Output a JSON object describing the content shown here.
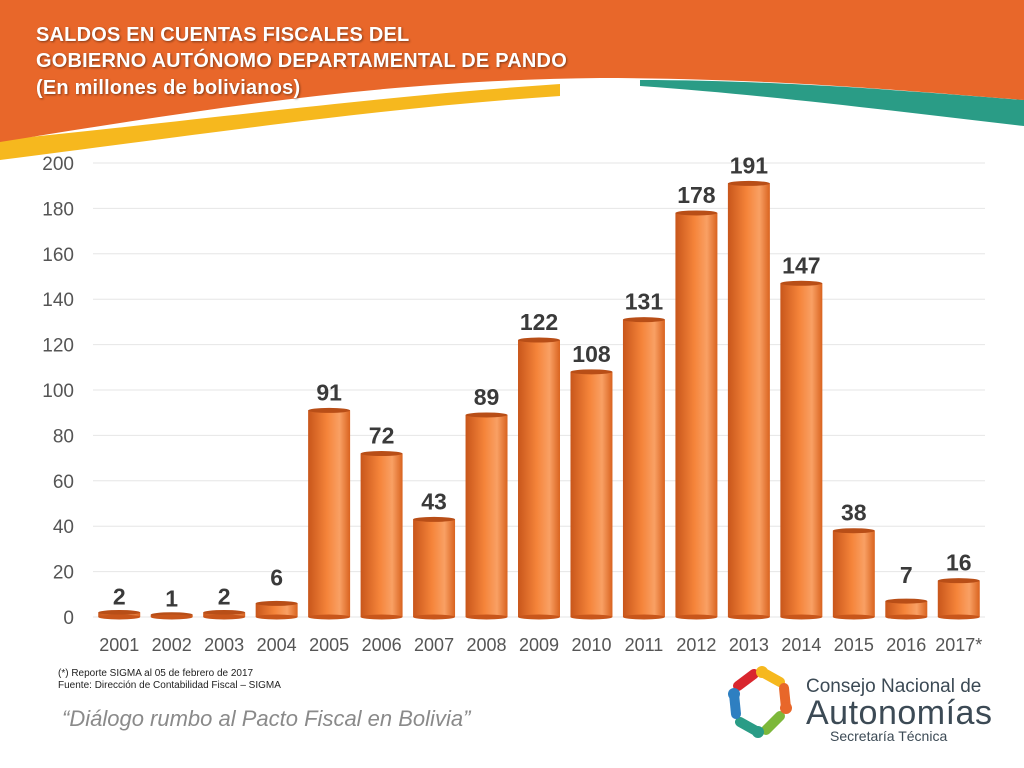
{
  "title": {
    "line1": "SALDOS EN CUENTAS FISCALES DEL",
    "line2": "GOBIERNO AUTÓNOMO DEPARTAMENTAL DE PANDO",
    "line3": "(En millones de bolivianos)"
  },
  "colors": {
    "header_orange": "#E8672A",
    "header_teal": "#2A9C86",
    "header_yellow": "#F6B81E",
    "bar_orange": "#F07A2A",
    "grid": "#e6e6e6"
  },
  "chart_data": {
    "type": "bar",
    "categories": [
      "2001",
      "2002",
      "2003",
      "2004",
      "2005",
      "2006",
      "2007",
      "2008",
      "2009",
      "2010",
      "2011",
      "2012",
      "2013",
      "2014",
      "2015",
      "2016",
      "2017*"
    ],
    "values": [
      2,
      1,
      2,
      6,
      91,
      72,
      43,
      89,
      122,
      108,
      131,
      178,
      191,
      147,
      38,
      7,
      16
    ],
    "data_labels": [
      "2",
      "1",
      "2",
      "6",
      "91",
      "72",
      "43",
      "89",
      "122",
      "108",
      "131",
      "178",
      "191",
      "147",
      "38",
      "7",
      "16"
    ],
    "y_ticks": [
      "0",
      "20",
      "40",
      "60",
      "80",
      "100",
      "120",
      "140",
      "160",
      "180",
      "200"
    ],
    "ylim": [
      0,
      200
    ],
    "grid": true,
    "legend": "none"
  },
  "footnotes": {
    "note": "(*) Reporte SIGMA al 05 de febrero de 2017",
    "source": "Fuente: Dirección de Contabilidad Fiscal – SIGMA"
  },
  "slogan": "“Diálogo rumbo al Pacto Fiscal en Bolivia”",
  "logo": {
    "line1": "Consejo Nacional de",
    "line2": "Autonomías",
    "line3": "Secretaría Técnica",
    "icon": "hands-circle-icon"
  }
}
